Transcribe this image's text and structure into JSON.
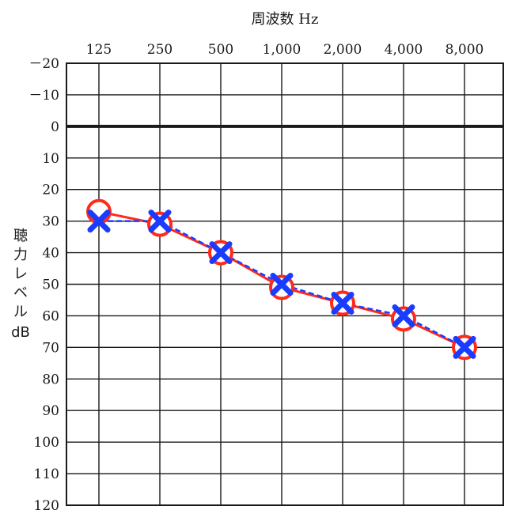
{
  "chart_data": {
    "type": "line",
    "title": "",
    "xlabel": "周波数 Hz",
    "ylabel": "聴力レベル dB",
    "x_tick_labels": [
      "125",
      "250",
      "500",
      "1,000",
      "2,000",
      "4,000",
      "8,000"
    ],
    "y_ticks": [
      -20,
      -10,
      0,
      10,
      20,
      30,
      40,
      50,
      60,
      70,
      80,
      90,
      100,
      110,
      120
    ],
    "y_tick_labels": [
      "－20",
      "－10",
      "0",
      "10",
      "20",
      "30",
      "40",
      "50",
      "60",
      "70",
      "80",
      "90",
      "100",
      "110",
      "120"
    ],
    "ylim": [
      -20,
      120
    ],
    "y_inverted": true,
    "x_axis_position": "top",
    "grid": true,
    "series": [
      {
        "marker": "circle",
        "color": "#ff2a1a",
        "values": [
          27,
          31,
          40,
          51,
          56,
          61,
          70
        ]
      },
      {
        "marker": "cross",
        "color": "#1a3cff",
        "line_style": "dashed",
        "values": [
          30,
          30,
          40,
          50,
          56,
          60,
          70
        ]
      }
    ]
  }
}
